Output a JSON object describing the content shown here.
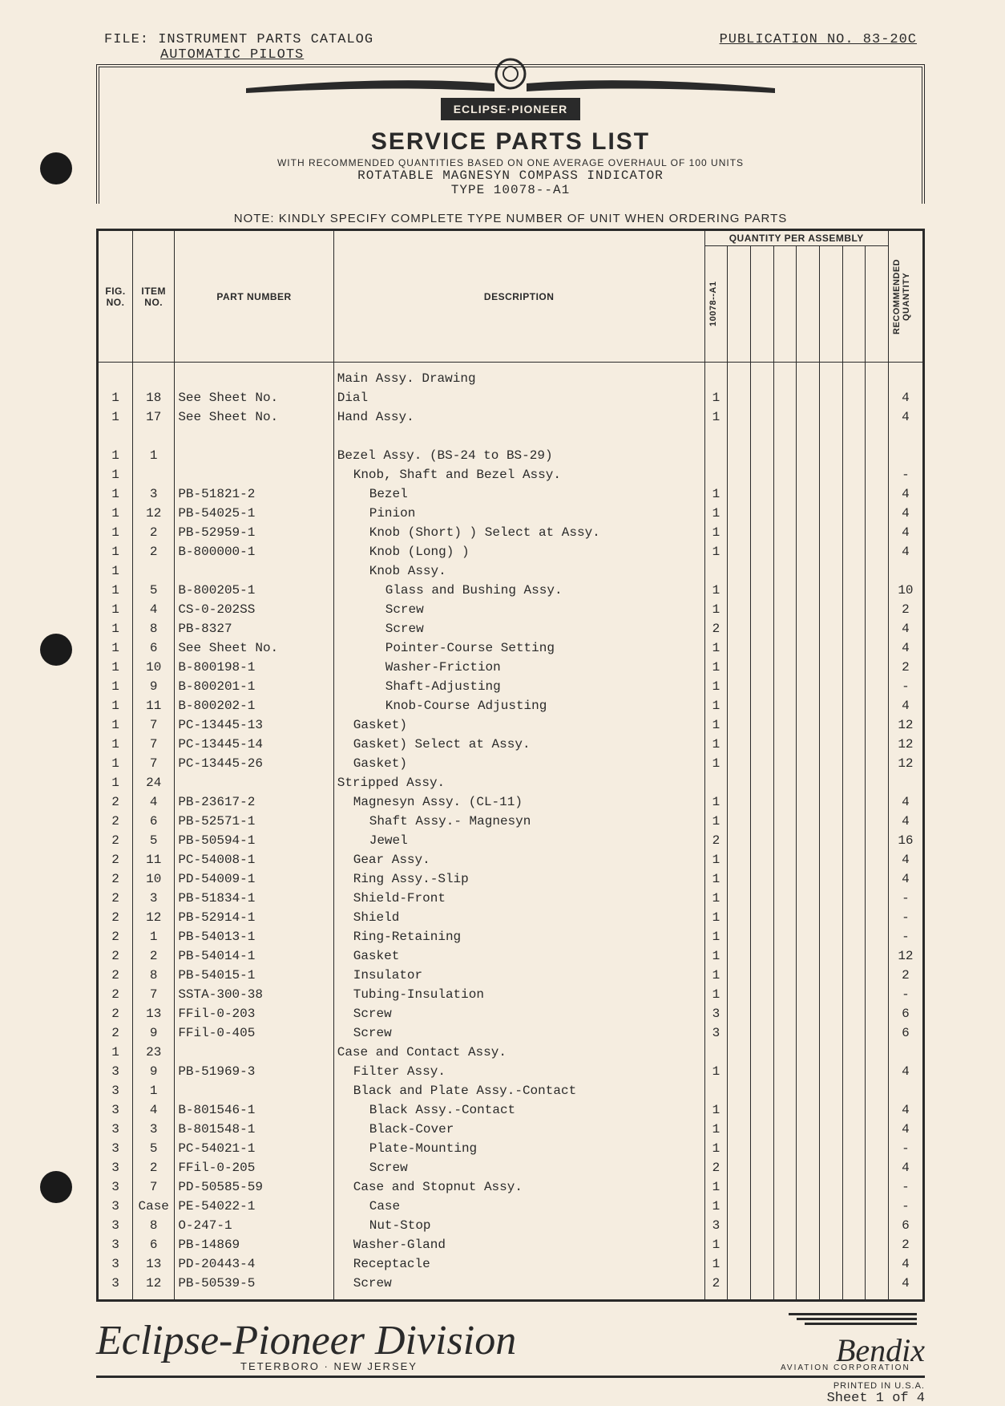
{
  "header": {
    "file_label": "FILE:",
    "file_title": "INSTRUMENT PARTS CATALOG",
    "file_sub": "AUTOMATIC PILOTS",
    "publication": "PUBLICATION NO. 83-20C",
    "brand": "ECLIPSE·PIONEER",
    "title": "SERVICE PARTS LIST",
    "subtitle": "WITH RECOMMENDED QUANTITIES BASED ON ONE AVERAGE OVERHAUL OF 100 UNITS",
    "subtitle2": "ROTATABLE MAGNESYN COMPASS INDICATOR",
    "subtitle3": "TYPE 10078--A1",
    "note": "NOTE: KINDLY SPECIFY COMPLETE TYPE NUMBER OF UNIT WHEN ORDERING PARTS"
  },
  "columns": {
    "fig": "FIG. NO.",
    "item": "ITEM NO.",
    "part": "PART NUMBER",
    "desc": "DESCRIPTION",
    "qty_super": "QUANTITY PER ASSEMBLY",
    "qcol1": "10078--A1",
    "rec": "RECOMMENDED QUANTITY"
  },
  "rows": [
    {
      "fig": "",
      "item": "",
      "part": "",
      "desc": "Main Assy. Drawing",
      "ind": 0,
      "q1": "",
      "rec": ""
    },
    {
      "fig": "1",
      "item": "18",
      "part": "See Sheet No.",
      "desc": "Dial",
      "ind": 0,
      "q1": "1",
      "rec": "4"
    },
    {
      "fig": "1",
      "item": "17",
      "part": "See Sheet No.",
      "desc": "Hand Assy.",
      "ind": 0,
      "q1": "1",
      "rec": "4"
    },
    {
      "fig": "",
      "item": "",
      "part": "",
      "desc": "",
      "ind": 0,
      "q1": "",
      "rec": ""
    },
    {
      "fig": "1",
      "item": "1",
      "part": "",
      "desc": "Bezel Assy. (BS-24 to BS-29)",
      "ind": 0,
      "q1": "",
      "rec": ""
    },
    {
      "fig": "1",
      "item": "",
      "part": "",
      "desc": "Knob, Shaft and Bezel Assy.",
      "ind": 1,
      "q1": "",
      "rec": "-"
    },
    {
      "fig": "1",
      "item": "3",
      "part": "PB-51821-2",
      "desc": "Bezel",
      "ind": 2,
      "q1": "1",
      "rec": "4"
    },
    {
      "fig": "1",
      "item": "12",
      "part": "PB-54025-1",
      "desc": "Pinion",
      "ind": 2,
      "q1": "1",
      "rec": "4"
    },
    {
      "fig": "1",
      "item": "2",
      "part": "PB-52959-1",
      "desc": "Knob (Short) )   Select at Assy.",
      "ind": 2,
      "q1": "1",
      "rec": "4"
    },
    {
      "fig": "1",
      "item": "2",
      "part": "B-800000-1",
      "desc": "Knob (Long)  )",
      "ind": 2,
      "q1": "1",
      "rec": "4"
    },
    {
      "fig": "1",
      "item": "",
      "part": "",
      "desc": "Knob Assy.",
      "ind": 2,
      "q1": "",
      "rec": ""
    },
    {
      "fig": "1",
      "item": "5",
      "part": "B-800205-1",
      "desc": "Glass and Bushing Assy.",
      "ind": 3,
      "q1": "1",
      "rec": "10"
    },
    {
      "fig": "1",
      "item": "4",
      "part": "CS-0-202SS",
      "desc": "Screw",
      "ind": 3,
      "q1": "1",
      "rec": "2"
    },
    {
      "fig": "1",
      "item": "8",
      "part": "PB-8327",
      "desc": "Screw",
      "ind": 3,
      "q1": "2",
      "rec": "4"
    },
    {
      "fig": "1",
      "item": "6",
      "part": "See Sheet No.",
      "desc": "Pointer-Course Setting",
      "ind": 3,
      "q1": "1",
      "rec": "4"
    },
    {
      "fig": "1",
      "item": "10",
      "part": "B-800198-1",
      "desc": "Washer-Friction",
      "ind": 3,
      "q1": "1",
      "rec": "2"
    },
    {
      "fig": "1",
      "item": "9",
      "part": "B-800201-1",
      "desc": "Shaft-Adjusting",
      "ind": 3,
      "q1": "1",
      "rec": "-"
    },
    {
      "fig": "1",
      "item": "11",
      "part": "B-800202-1",
      "desc": "Knob-Course Adjusting",
      "ind": 3,
      "q1": "1",
      "rec": "4"
    },
    {
      "fig": "1",
      "item": "7",
      "part": "PC-13445-13",
      "desc": "Gasket)",
      "ind": 1,
      "q1": "1",
      "rec": "12"
    },
    {
      "fig": "1",
      "item": "7",
      "part": "PC-13445-14",
      "desc": "Gasket)   Select at Assy.",
      "ind": 1,
      "q1": "1",
      "rec": "12"
    },
    {
      "fig": "1",
      "item": "7",
      "part": "PC-13445-26",
      "desc": "Gasket)",
      "ind": 1,
      "q1": "1",
      "rec": "12"
    },
    {
      "fig": "1",
      "item": "24",
      "part": "",
      "desc": "Stripped Assy.",
      "ind": 0,
      "q1": "",
      "rec": ""
    },
    {
      "fig": "2",
      "item": "4",
      "part": "PB-23617-2",
      "desc": "Magnesyn Assy. (CL-11)",
      "ind": 1,
      "q1": "1",
      "rec": "4"
    },
    {
      "fig": "2",
      "item": "6",
      "part": "PB-52571-1",
      "desc": "Shaft Assy.- Magnesyn",
      "ind": 2,
      "q1": "1",
      "rec": "4"
    },
    {
      "fig": "2",
      "item": "5",
      "part": "PB-50594-1",
      "desc": "Jewel",
      "ind": 2,
      "q1": "2",
      "rec": "16"
    },
    {
      "fig": "2",
      "item": "11",
      "part": "PC-54008-1",
      "desc": "Gear Assy.",
      "ind": 1,
      "q1": "1",
      "rec": "4"
    },
    {
      "fig": "2",
      "item": "10",
      "part": "PD-54009-1",
      "desc": "Ring Assy.-Slip",
      "ind": 1,
      "q1": "1",
      "rec": "4"
    },
    {
      "fig": "2",
      "item": "3",
      "part": "PB-51834-1",
      "desc": "Shield-Front",
      "ind": 1,
      "q1": "1",
      "rec": "-"
    },
    {
      "fig": "2",
      "item": "12",
      "part": "PB-52914-1",
      "desc": "Shield",
      "ind": 1,
      "q1": "1",
      "rec": "-"
    },
    {
      "fig": "2",
      "item": "1",
      "part": "PB-54013-1",
      "desc": "Ring-Retaining",
      "ind": 1,
      "q1": "1",
      "rec": "-"
    },
    {
      "fig": "2",
      "item": "2",
      "part": "PB-54014-1",
      "desc": "Gasket",
      "ind": 1,
      "q1": "1",
      "rec": "12"
    },
    {
      "fig": "2",
      "item": "8",
      "part": "PB-54015-1",
      "desc": "Insulator",
      "ind": 1,
      "q1": "1",
      "rec": "2"
    },
    {
      "fig": "2",
      "item": "7",
      "part": "SSTA-300-38",
      "desc": "Tubing-Insulation",
      "ind": 1,
      "q1": "1",
      "rec": "-"
    },
    {
      "fig": "2",
      "item": "13",
      "part": "FFil-0-203",
      "desc": "Screw",
      "ind": 1,
      "q1": "3",
      "rec": "6"
    },
    {
      "fig": "2",
      "item": "9",
      "part": "FFil-0-405",
      "desc": "Screw",
      "ind": 1,
      "q1": "3",
      "rec": "6"
    },
    {
      "fig": "1",
      "item": "23",
      "part": "",
      "desc": "Case and Contact Assy.",
      "ind": 0,
      "q1": "",
      "rec": ""
    },
    {
      "fig": "3",
      "item": "9",
      "part": "PB-51969-3",
      "desc": "Filter Assy.",
      "ind": 1,
      "q1": "1",
      "rec": "4"
    },
    {
      "fig": "3",
      "item": "1",
      "part": "",
      "desc": "Black and Plate Assy.-Contact",
      "ind": 1,
      "q1": "",
      "rec": ""
    },
    {
      "fig": "3",
      "item": "4",
      "part": "B-801546-1",
      "desc": "Black Assy.-Contact",
      "ind": 2,
      "q1": "1",
      "rec": "4"
    },
    {
      "fig": "3",
      "item": "3",
      "part": "B-801548-1",
      "desc": "Black-Cover",
      "ind": 2,
      "q1": "1",
      "rec": "4"
    },
    {
      "fig": "3",
      "item": "5",
      "part": "PC-54021-1",
      "desc": "Plate-Mounting",
      "ind": 2,
      "q1": "1",
      "rec": "-"
    },
    {
      "fig": "3",
      "item": "2",
      "part": "FFil-0-205",
      "desc": "Screw",
      "ind": 2,
      "q1": "2",
      "rec": "4"
    },
    {
      "fig": "3",
      "item": "7",
      "part": "PD-50585-59",
      "desc": "Case and Stopnut Assy.",
      "ind": 1,
      "q1": "1",
      "rec": "-"
    },
    {
      "fig": "3",
      "item": "Case",
      "part": "PE-54022-1",
      "desc": "Case",
      "ind": 2,
      "q1": "1",
      "rec": "-"
    },
    {
      "fig": "3",
      "item": "8",
      "part": "O-247-1",
      "desc": "Nut-Stop",
      "ind": 2,
      "q1": "3",
      "rec": "6"
    },
    {
      "fig": "3",
      "item": "6",
      "part": "PB-14869",
      "desc": "Washer-Gland",
      "ind": 1,
      "q1": "1",
      "rec": "2"
    },
    {
      "fig": "3",
      "item": "13",
      "part": "PD-20443-4",
      "desc": "Receptacle",
      "ind": 1,
      "q1": "1",
      "rec": "4"
    },
    {
      "fig": "3",
      "item": "12",
      "part": "PB-50539-5",
      "desc": "Screw",
      "ind": 1,
      "q1": "2",
      "rec": "4"
    }
  ],
  "footer": {
    "division": "Eclipse-Pioneer Division",
    "location": "TETERBORO · NEW JERSEY",
    "bendix": "Bendix",
    "bendix_sub": "AVIATION CORPORATION",
    "printed": "PRINTED IN U.S.A.",
    "sheet": "Sheet 1 of 4"
  },
  "colors": {
    "bg": "#f5ede0",
    "ink": "#2a2a2a"
  }
}
